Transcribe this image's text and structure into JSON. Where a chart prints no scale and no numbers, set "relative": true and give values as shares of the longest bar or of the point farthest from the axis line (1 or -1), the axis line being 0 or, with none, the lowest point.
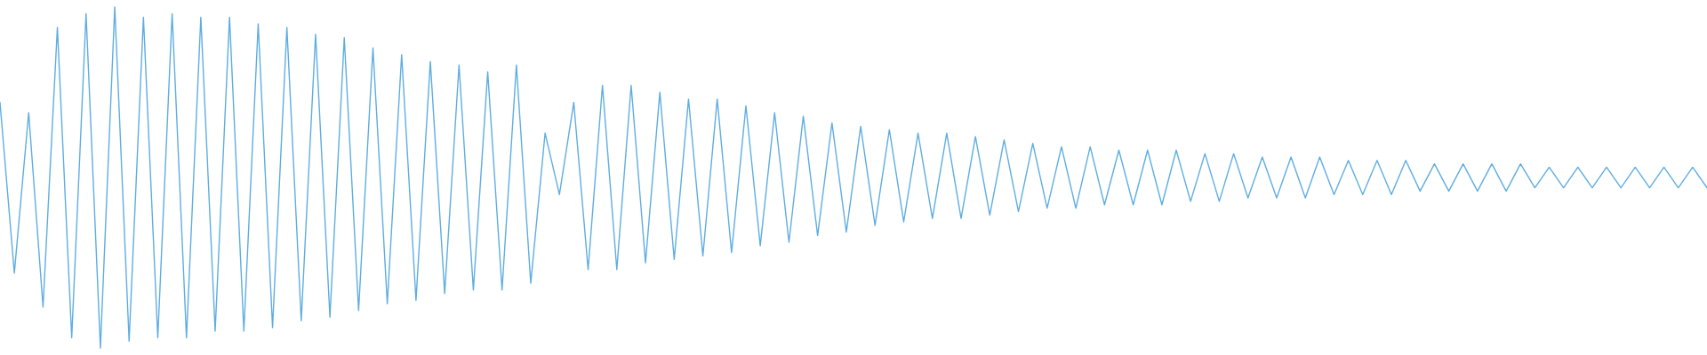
{
  "chart_data": {
    "type": "line",
    "relative": true,
    "categories": [
      null,
      null,
      null,
      null,
      null,
      null,
      null,
      null,
      null,
      null,
      null,
      null,
      null,
      null,
      null,
      null,
      null,
      null,
      null,
      null,
      null,
      null,
      null,
      null,
      null,
      null,
      null,
      null,
      null,
      null,
      null,
      null,
      null,
      null,
      null,
      null,
      null,
      null,
      null,
      null,
      null,
      null,
      null,
      null,
      null,
      null,
      null,
      null,
      null,
      null,
      null,
      null,
      null,
      null,
      null,
      null,
      null,
      null,
      null,
      null,
      null,
      null,
      null,
      null,
      null,
      null,
      null,
      null,
      null,
      null,
      null,
      null,
      null,
      null,
      null,
      null,
      null,
      null,
      null,
      null,
      null,
      null,
      null,
      null,
      null,
      null,
      null,
      null,
      null,
      null,
      null,
      null,
      null,
      null,
      null,
      null,
      null,
      null,
      null,
      null,
      null,
      null,
      null,
      null,
      null,
      null,
      null,
      null,
      null,
      null,
      null,
      null,
      null,
      null,
      null,
      null,
      null,
      null,
      null,
      null
    ],
    "series": [
      {
        "color": "#5dade2",
        "values": [
          0.72,
          0.22,
          0.69,
          0.12,
          0.94,
          0.03,
          0.98,
          0.0,
          1.0,
          0.02,
          0.97,
          0.03,
          0.98,
          0.03,
          0.97,
          0.05,
          0.97,
          0.05,
          0.95,
          0.06,
          0.94,
          0.08,
          0.92,
          0.09,
          0.91,
          0.11,
          0.88,
          0.13,
          0.86,
          0.14,
          0.84,
          0.16,
          0.83,
          0.17,
          0.81,
          0.17,
          0.83,
          0.19,
          0.63,
          0.45,
          0.72,
          0.23,
          0.77,
          0.23,
          0.77,
          0.25,
          0.75,
          0.26,
          0.73,
          0.27,
          0.73,
          0.28,
          0.71,
          0.3,
          0.69,
          0.31,
          0.68,
          0.33,
          0.66,
          0.34,
          0.65,
          0.36,
          0.64,
          0.37,
          0.63,
          0.38,
          0.63,
          0.38,
          0.62,
          0.39,
          0.61,
          0.4,
          0.6,
          0.41,
          0.59,
          0.41,
          0.59,
          0.42,
          0.58,
          0.42,
          0.58,
          0.42,
          0.58,
          0.43,
          0.57,
          0.43,
          0.57,
          0.44,
          0.56,
          0.44,
          0.56,
          0.44,
          0.56,
          0.45,
          0.55,
          0.45,
          0.55,
          0.45,
          0.55,
          0.46,
          0.54,
          0.46,
          0.54,
          0.46,
          0.54,
          0.46,
          0.54,
          0.47,
          0.53,
          0.47,
          0.53,
          0.47,
          0.53,
          0.47,
          0.53,
          0.47,
          0.53,
          0.47,
          0.53,
          0.47
        ]
      }
    ],
    "line_style": "solid"
  }
}
